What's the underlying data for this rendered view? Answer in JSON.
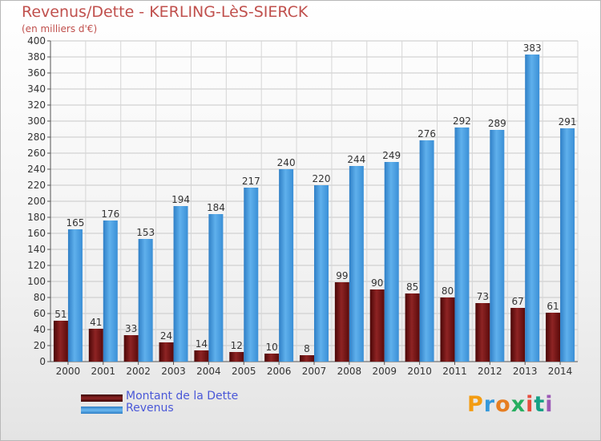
{
  "title": "Revenus/Dette - KERLING-LèS-SIERCK",
  "subtitle": "(en milliers d'€)",
  "logo": "Proxiti",
  "chart_data": {
    "type": "bar",
    "title": "Revenus/Dette - KERLING-LèS-SIERCK",
    "ylabel": "(en milliers d'€)",
    "xlabel": "",
    "ylim": [
      0,
      400
    ],
    "ytick_step": 20,
    "grid": true,
    "categories": [
      "2000",
      "2001",
      "2002",
      "2003",
      "2004",
      "2005",
      "2006",
      "2007",
      "2008",
      "2009",
      "2010",
      "2011",
      "2012",
      "2013",
      "2014"
    ],
    "series": [
      {
        "name": "Montant de la Dette",
        "color": "#8b1a1a",
        "values": [
          51,
          41,
          33,
          24,
          14,
          12,
          10,
          8,
          99,
          90,
          85,
          80,
          73,
          67,
          61
        ]
      },
      {
        "name": "Revenus",
        "color": "#4a9fe0",
        "values": [
          165,
          176,
          153,
          194,
          184,
          217,
          240,
          220,
          244,
          249,
          276,
          292,
          289,
          383,
          291
        ]
      }
    ]
  },
  "legend": [
    {
      "label": "Montant de la Dette",
      "color": "#6b0d0d"
    },
    {
      "label": "Revenus",
      "color": "#4a9fe0"
    }
  ]
}
